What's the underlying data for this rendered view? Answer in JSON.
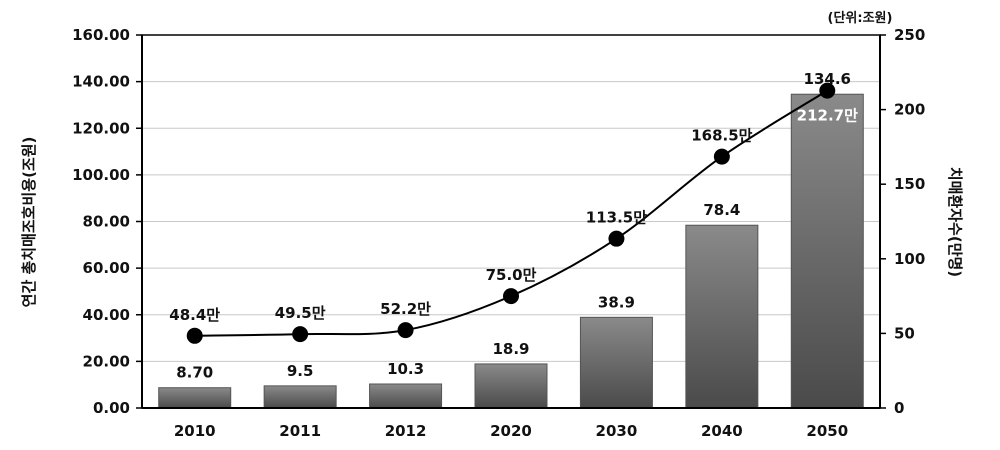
{
  "chart_data": {
    "type": "bar+line",
    "unit_note": "(단위:조원)",
    "categories": [
      "2010",
      "2011",
      "2012",
      "2020",
      "2030",
      "2040",
      "2050"
    ],
    "bars": {
      "axis": "left",
      "values": [
        8.7,
        9.5,
        10.3,
        18.9,
        38.9,
        78.4,
        134.6
      ],
      "labels": [
        "8.70",
        "9.5",
        "10.3",
        "18.9",
        "38.9",
        "78.4",
        "134.6"
      ],
      "color": "#6e6e6e"
    },
    "line": {
      "axis": "right",
      "values": [
        48.4,
        49.5,
        52.2,
        75.0,
        113.5,
        168.5,
        212.7
      ],
      "labels": [
        "48.4만",
        "49.5만",
        "52.2만",
        "75.0만",
        "113.5만",
        "168.5만",
        "212.7만"
      ],
      "color": "#000000"
    },
    "left_axis": {
      "label": "연간 총치매조호비용(조원)",
      "ylim": [
        0,
        160
      ],
      "ticks": [
        "0.00",
        "20.00",
        "40.00",
        "60.00",
        "80.00",
        "100.00",
        "120.00",
        "140.00",
        "160.00"
      ]
    },
    "right_axis": {
      "label": "치매환자수(만명)",
      "ylim": [
        0,
        250
      ],
      "ticks": [
        "0",
        "50",
        "100",
        "150",
        "200",
        "250"
      ]
    },
    "grid": true,
    "legend": "none"
  }
}
